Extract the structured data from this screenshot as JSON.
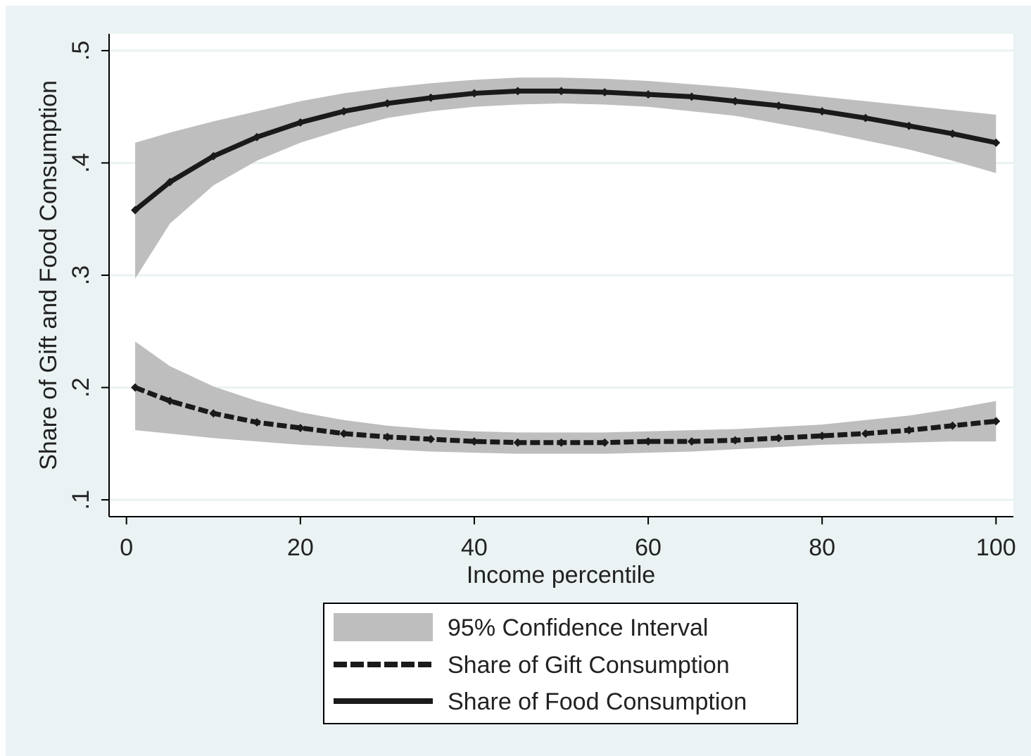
{
  "chart_data": {
    "type": "line",
    "title": "",
    "xlabel": "Income percentile",
    "ylabel": "Share of Gift and Food Consumption",
    "xlim": [
      -2,
      102
    ],
    "ylim": [
      0.085,
      0.515
    ],
    "xticks": [
      0,
      20,
      40,
      60,
      80,
      100
    ],
    "xtick_labels": [
      "0",
      "20",
      "40",
      "60",
      "80",
      "100"
    ],
    "yticks": [
      0.1,
      0.2,
      0.3,
      0.4,
      0.5
    ],
    "ytick_labels": [
      ".1",
      ".2",
      ".3",
      ".4",
      ".5"
    ],
    "grid": true,
    "legend_position": "bottom",
    "legend": [
      {
        "label": "95% Confidence Interval",
        "style": "band"
      },
      {
        "label": "Share of Gift Consumption",
        "style": "dashed"
      },
      {
        "label": "Share of Food Consumption",
        "style": "solid"
      }
    ],
    "x": [
      1,
      5,
      10,
      15,
      20,
      25,
      30,
      35,
      40,
      45,
      50,
      55,
      60,
      65,
      70,
      75,
      80,
      85,
      90,
      95,
      100
    ],
    "series": [
      {
        "name": "Share of Food Consumption",
        "style": "solid",
        "values": [
          0.358,
          0.383,
          0.406,
          0.423,
          0.436,
          0.446,
          0.453,
          0.458,
          0.462,
          0.464,
          0.464,
          0.463,
          0.461,
          0.459,
          0.455,
          0.451,
          0.446,
          0.44,
          0.433,
          0.426,
          0.418
        ],
        "ci_lower": [
          0.297,
          0.346,
          0.38,
          0.402,
          0.418,
          0.43,
          0.44,
          0.446,
          0.45,
          0.452,
          0.453,
          0.452,
          0.45,
          0.446,
          0.442,
          0.435,
          0.428,
          0.42,
          0.412,
          0.402,
          0.391
        ],
        "ci_upper": [
          0.418,
          0.427,
          0.437,
          0.446,
          0.455,
          0.462,
          0.467,
          0.471,
          0.474,
          0.476,
          0.476,
          0.475,
          0.473,
          0.47,
          0.467,
          0.463,
          0.459,
          0.455,
          0.451,
          0.447,
          0.443
        ]
      },
      {
        "name": "Share of Gift Consumption",
        "style": "dashed",
        "values": [
          0.2,
          0.188,
          0.177,
          0.169,
          0.164,
          0.159,
          0.156,
          0.154,
          0.152,
          0.151,
          0.151,
          0.151,
          0.152,
          0.152,
          0.153,
          0.155,
          0.157,
          0.159,
          0.162,
          0.166,
          0.17
        ],
        "ci_lower": [
          0.162,
          0.159,
          0.155,
          0.152,
          0.149,
          0.147,
          0.145,
          0.143,
          0.142,
          0.141,
          0.141,
          0.141,
          0.142,
          0.143,
          0.145,
          0.147,
          0.149,
          0.15,
          0.151,
          0.152,
          0.152
        ],
        "ci_upper": [
          0.241,
          0.219,
          0.201,
          0.188,
          0.178,
          0.171,
          0.166,
          0.163,
          0.161,
          0.16,
          0.16,
          0.16,
          0.161,
          0.162,
          0.163,
          0.165,
          0.167,
          0.171,
          0.175,
          0.181,
          0.188
        ]
      }
    ]
  },
  "colors": {
    "background": "#eaf2f3",
    "plot_background": "#ffffff",
    "grid": "#eaf2f3",
    "band": "#bebebe",
    "line": "#1a1a1a",
    "axis": "#000000"
  }
}
